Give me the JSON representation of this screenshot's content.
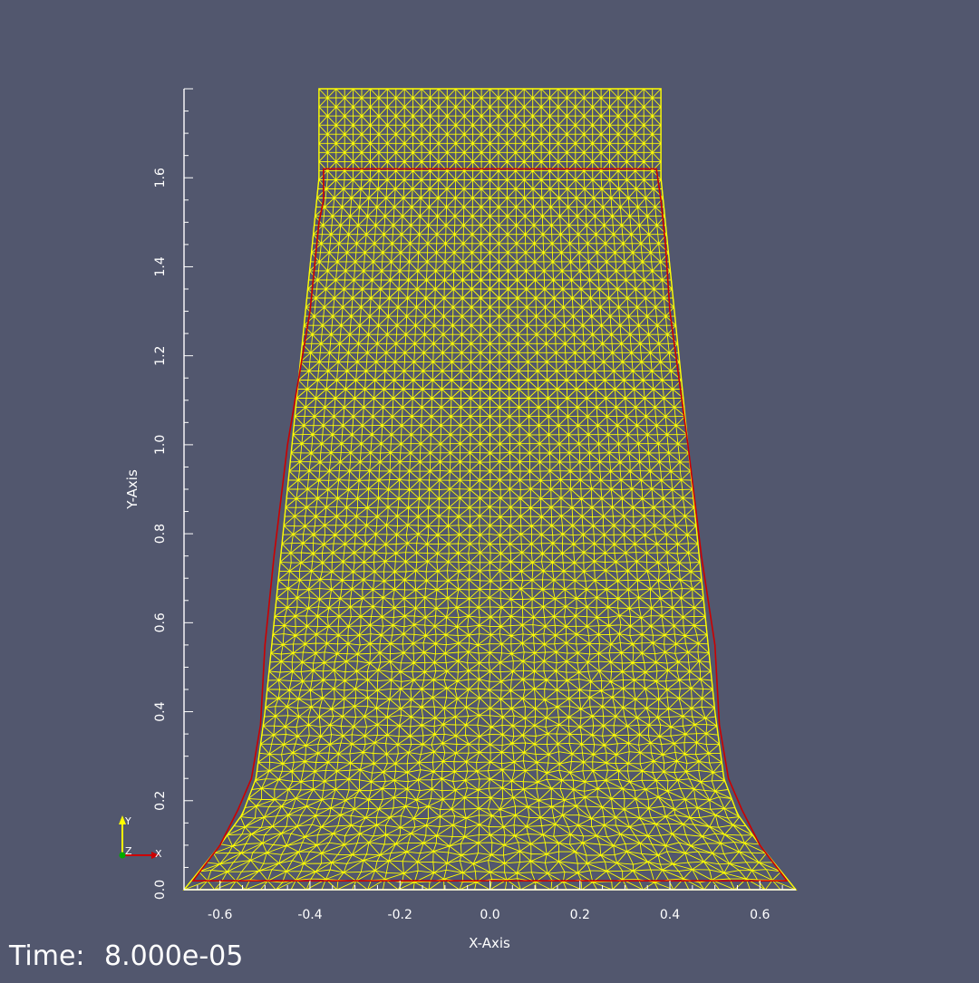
{
  "chart_data": {
    "type": "line",
    "title": "",
    "xlabel": "X-Axis",
    "ylabel": "Y-Axis",
    "xlim": [
      -0.68,
      0.68
    ],
    "ylim": [
      0.0,
      1.8
    ],
    "x_ticks": [
      -0.6,
      -0.4,
      -0.2,
      0.0,
      0.2,
      0.4,
      0.6
    ],
    "x_tick_labels": [
      "-0.6",
      "-0.4",
      "-0.2",
      "0.0",
      "0.2",
      "0.4",
      "0.6"
    ],
    "y_ticks": [
      0.0,
      0.2,
      0.4,
      0.6,
      0.8,
      1.0,
      1.2,
      1.4,
      1.6
    ],
    "y_tick_labels": [
      "0.0",
      "0.2",
      "0.4",
      "0.6",
      "0.8",
      "1.0",
      "1.2",
      "1.4",
      "1.6"
    ],
    "grid": false,
    "series": [
      {
        "kind": "mesh-outline",
        "color": "#ffff00",
        "x": [
          -0.38,
          0.38,
          0.38,
          0.4,
          0.42,
          0.44,
          0.46,
          0.48,
          0.5,
          0.52,
          0.55,
          0.6,
          0.68,
          -0.68,
          -0.6,
          -0.55,
          -0.52,
          -0.5,
          -0.48,
          -0.46,
          -0.44,
          -0.42,
          -0.4,
          -0.38
        ],
        "y": [
          1.8,
          1.8,
          1.6,
          1.4,
          1.2,
          1.0,
          0.8,
          0.6,
          0.4,
          0.25,
          0.17,
          0.1,
          0.0,
          0.0,
          0.1,
          0.17,
          0.25,
          0.4,
          0.6,
          0.8,
          1.0,
          1.2,
          1.4,
          1.6
        ]
      },
      {
        "kind": "outline",
        "color": "#cc0000",
        "x": [
          -0.37,
          0.37,
          0.38,
          0.39,
          0.4,
          0.44,
          0.47,
          0.5,
          0.51,
          0.53,
          0.56,
          0.6,
          0.66,
          -0.66,
          -0.6,
          -0.56,
          -0.53,
          -0.51,
          -0.5,
          -0.48,
          -0.45,
          -0.4,
          -0.38,
          -0.37
        ],
        "y": [
          1.62,
          1.62,
          1.55,
          1.45,
          1.3,
          1.0,
          0.75,
          0.55,
          0.37,
          0.25,
          0.18,
          0.1,
          0.02,
          0.02,
          0.1,
          0.18,
          0.25,
          0.37,
          0.55,
          0.75,
          1.0,
          1.3,
          1.5,
          1.55
        ]
      }
    ],
    "orientation_axes": {
      "labels": [
        "Y",
        "Z",
        "X"
      ],
      "colors": [
        "#ffff00",
        "#00aa00",
        "#cc0000"
      ]
    }
  },
  "status": {
    "time_label": "Time:",
    "time_value": "8.000e-05"
  }
}
